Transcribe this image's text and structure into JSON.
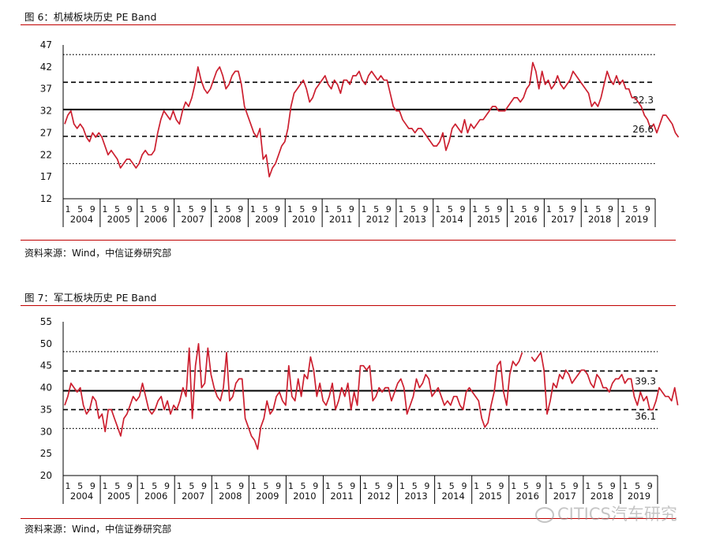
{
  "figures": [
    {
      "title": "图 6：机械板块历史 PE Band",
      "source": "资料来源：Wind，中信证券研究部"
    },
    {
      "title": "图 7：军工板块历史 PE Band",
      "source": "资料来源：Wind，中信证券研究部"
    }
  ],
  "watermark": "CITICS汽车研究",
  "colors": {
    "line": "#cc1f2f",
    "rule": "#c00000",
    "band": "#000000"
  },
  "chart_data": [
    {
      "type": "line",
      "title": "",
      "xlabel": "",
      "ylabel": "",
      "ylim": [
        12,
        47
      ],
      "yticks": [
        12,
        17,
        22,
        27,
        32,
        37,
        42,
        47
      ],
      "years": [
        "2004",
        "2005",
        "2006",
        "2007",
        "2008",
        "2009",
        "2010",
        "2011",
        "2012",
        "2013",
        "2014",
        "2015",
        "2016",
        "2017",
        "2018",
        "2019"
      ],
      "month_ticks": [
        "1",
        "5",
        "9"
      ],
      "bands": [
        {
          "name": "upper_dotted",
          "value": 44.8,
          "style": "dotted"
        },
        {
          "name": "upper_dashed",
          "value": 38.5,
          "style": "dashed"
        },
        {
          "name": "mean",
          "value": 32.3,
          "style": "solid",
          "label": "32.3"
        },
        {
          "name": "lower_dashed",
          "value": 26.2,
          "style": "dashed"
        },
        {
          "name": "lower_dotted",
          "value": 20.0,
          "style": "dotted"
        }
      ],
      "last_value_label": "26.6",
      "x_months": 191,
      "series": [
        {
          "values": [
            29,
            31,
            32,
            29,
            28,
            29,
            28,
            26,
            25,
            27,
            26,
            27,
            26,
            24,
            22,
            23,
            22,
            21,
            19,
            20,
            21,
            21,
            20,
            19,
            20,
            22,
            23,
            22,
            22,
            23,
            27,
            30,
            32,
            31,
            30,
            32,
            30,
            29,
            32,
            34,
            33,
            35,
            38,
            42,
            39,
            37,
            36,
            37,
            39,
            41,
            42,
            40,
            37,
            38,
            40,
            41,
            41,
            38,
            33,
            31,
            29,
            27,
            26,
            28,
            21,
            22,
            17,
            19,
            20,
            22,
            24,
            25,
            28,
            33,
            36,
            37,
            38,
            39,
            37,
            34,
            35,
            37,
            38,
            39,
            40,
            38,
            37,
            39,
            38,
            36,
            39,
            39,
            38,
            40,
            40,
            41,
            39,
            38,
            40,
            41,
            40,
            39,
            40,
            39,
            39,
            36,
            33,
            32,
            32,
            30,
            29,
            28,
            28,
            27,
            28,
            28,
            27,
            26,
            25,
            24,
            24,
            25,
            27,
            23,
            25,
            28,
            29,
            28,
            27,
            30,
            27,
            29,
            28,
            29,
            30,
            30,
            31,
            32,
            33,
            33,
            32,
            32,
            32,
            33,
            34,
            35,
            35,
            34,
            35,
            37,
            38,
            43,
            41,
            37,
            41,
            38,
            39,
            37,
            38,
            40,
            38,
            37,
            38,
            39,
            41,
            40,
            39,
            38,
            37,
            36,
            33,
            34,
            33,
            35,
            38,
            41,
            39,
            38,
            40,
            38,
            39,
            37,
            37,
            35,
            35,
            34,
            33,
            31,
            30,
            28,
            29,
            27,
            29,
            31,
            31,
            30,
            29,
            27,
            26
          ]
        }
      ]
    },
    {
      "type": "line",
      "title": "",
      "xlabel": "",
      "ylabel": "",
      "ylim": [
        20,
        55
      ],
      "yticks": [
        20,
        25,
        30,
        35,
        40,
        45,
        50,
        55
      ],
      "years": [
        "2004",
        "2005",
        "2006",
        "2007",
        "2008",
        "2009",
        "2010",
        "2011",
        "2012",
        "2013",
        "2014",
        "2015",
        "2016",
        "2017",
        "2018",
        "2019"
      ],
      "month_ticks": [
        "1",
        "5",
        "9"
      ],
      "bands": [
        {
          "name": "upper_dotted",
          "value": 48.2,
          "style": "dotted"
        },
        {
          "name": "upper_dashed",
          "value": 43.8,
          "style": "dashed"
        },
        {
          "name": "mean",
          "value": 39.3,
          "style": "solid",
          "label": "39.3"
        },
        {
          "name": "lower_dashed",
          "value": 35.0,
          "style": "dashed"
        },
        {
          "name": "lower_dotted",
          "value": 30.7,
          "style": "dotted"
        }
      ],
      "last_value_label": "36.1",
      "x_months": 191,
      "series": [
        {
          "values": [
            36,
            38,
            41,
            40,
            39,
            40,
            36,
            34,
            35,
            38,
            37,
            33,
            34,
            30,
            35,
            35,
            33,
            31,
            29,
            33,
            34,
            36,
            38,
            37,
            38,
            41,
            38,
            35,
            34,
            35,
            37,
            38,
            35,
            37,
            34,
            36,
            35,
            37,
            40,
            38,
            49,
            33,
            45,
            50,
            40,
            41,
            49,
            43,
            40,
            38,
            37,
            40,
            48,
            37,
            38,
            41,
            42,
            42,
            33,
            31,
            29,
            28,
            26,
            31,
            33,
            37,
            34,
            35,
            38,
            39,
            37,
            36,
            45,
            38,
            37,
            42,
            38,
            43,
            42,
            47,
            44,
            38,
            41,
            37,
            36,
            38,
            41,
            35,
            37,
            40,
            38,
            41,
            35,
            39,
            36,
            45,
            45,
            44,
            45,
            37,
            38,
            40,
            39,
            40,
            40,
            37,
            39,
            41,
            42,
            40,
            34,
            36,
            38,
            42,
            40,
            41,
            43,
            42,
            38,
            39,
            40,
            38,
            36,
            37,
            36,
            38,
            38,
            36,
            35,
            39,
            40,
            39,
            38,
            37,
            33,
            31,
            32,
            36,
            39,
            45,
            46,
            39,
            36,
            43,
            46,
            45,
            46,
            48,
            null,
            null,
            47,
            46,
            47,
            48,
            44,
            34,
            37,
            41,
            40,
            43,
            42,
            44,
            43,
            41,
            42,
            43,
            44,
            44,
            43,
            41,
            40,
            43,
            42,
            40,
            40,
            39,
            41,
            42,
            42,
            43,
            41,
            42,
            42,
            38,
            36,
            39,
            37,
            38,
            35,
            35,
            37,
            40,
            39,
            38,
            38,
            37,
            40,
            36
          ]
        }
      ]
    }
  ]
}
